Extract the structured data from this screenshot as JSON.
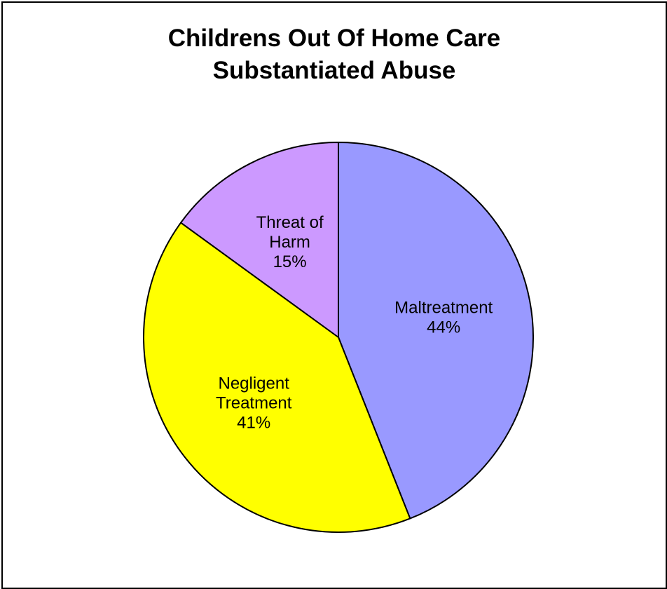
{
  "chart_data": {
    "type": "pie",
    "title_lines": [
      "Childrens Out Of Home Care",
      "Substantiated Abuse"
    ],
    "legend": "none",
    "slices": [
      {
        "label_lines": [
          "Maltreatment"
        ],
        "percent_label": "44%",
        "value": 44,
        "color": "#9999ff"
      },
      {
        "label_lines": [
          "Negligent",
          "Treatment"
        ],
        "percent_label": "41%",
        "value": 41,
        "color": "#ffff00"
      },
      {
        "label_lines": [
          "Threat of",
          "Harm"
        ],
        "percent_label": "15%",
        "value": 15,
        "color": "#cc99ff"
      }
    ]
  }
}
